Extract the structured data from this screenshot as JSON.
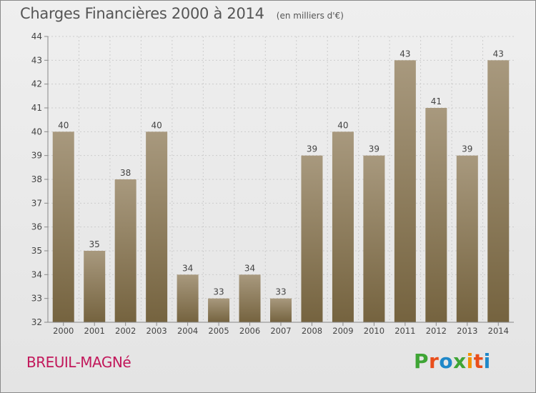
{
  "header": {
    "title": "Charges Financières 2000 à 2014",
    "unit": "(en milliers d'€)"
  },
  "footer": {
    "commune": "BREUIL-MAGNé",
    "brand": "Proxiti"
  },
  "colors": {
    "bar_top": "#a8997e",
    "bar_bottom": "#75633f",
    "axis": "#888888",
    "grid": "#cccccc",
    "text": "#444444",
    "commune": "#c2185b",
    "brand_letters": [
      "#3fa535",
      "#e94e1b",
      "#1f88c9",
      "#3fa535",
      "#f39200",
      "#e94e1b",
      "#1f88c9"
    ]
  },
  "chart_data": {
    "type": "bar",
    "title": "Charges Financières 2000 à 2014",
    "subtitle": "(en milliers d'€)",
    "categories": [
      "2000",
      "2001",
      "2002",
      "2003",
      "2004",
      "2005",
      "2006",
      "2007",
      "2008",
      "2009",
      "2010",
      "2011",
      "2012",
      "2013",
      "2014"
    ],
    "values": [
      40,
      35,
      38,
      40,
      34,
      33,
      34,
      33,
      39,
      40,
      39,
      43,
      41,
      39,
      43
    ],
    "ylim": [
      32,
      44
    ],
    "yticks": [
      32,
      33,
      34,
      35,
      36,
      37,
      38,
      39,
      40,
      41,
      42,
      43,
      44
    ],
    "grid": true,
    "legend": "none"
  }
}
